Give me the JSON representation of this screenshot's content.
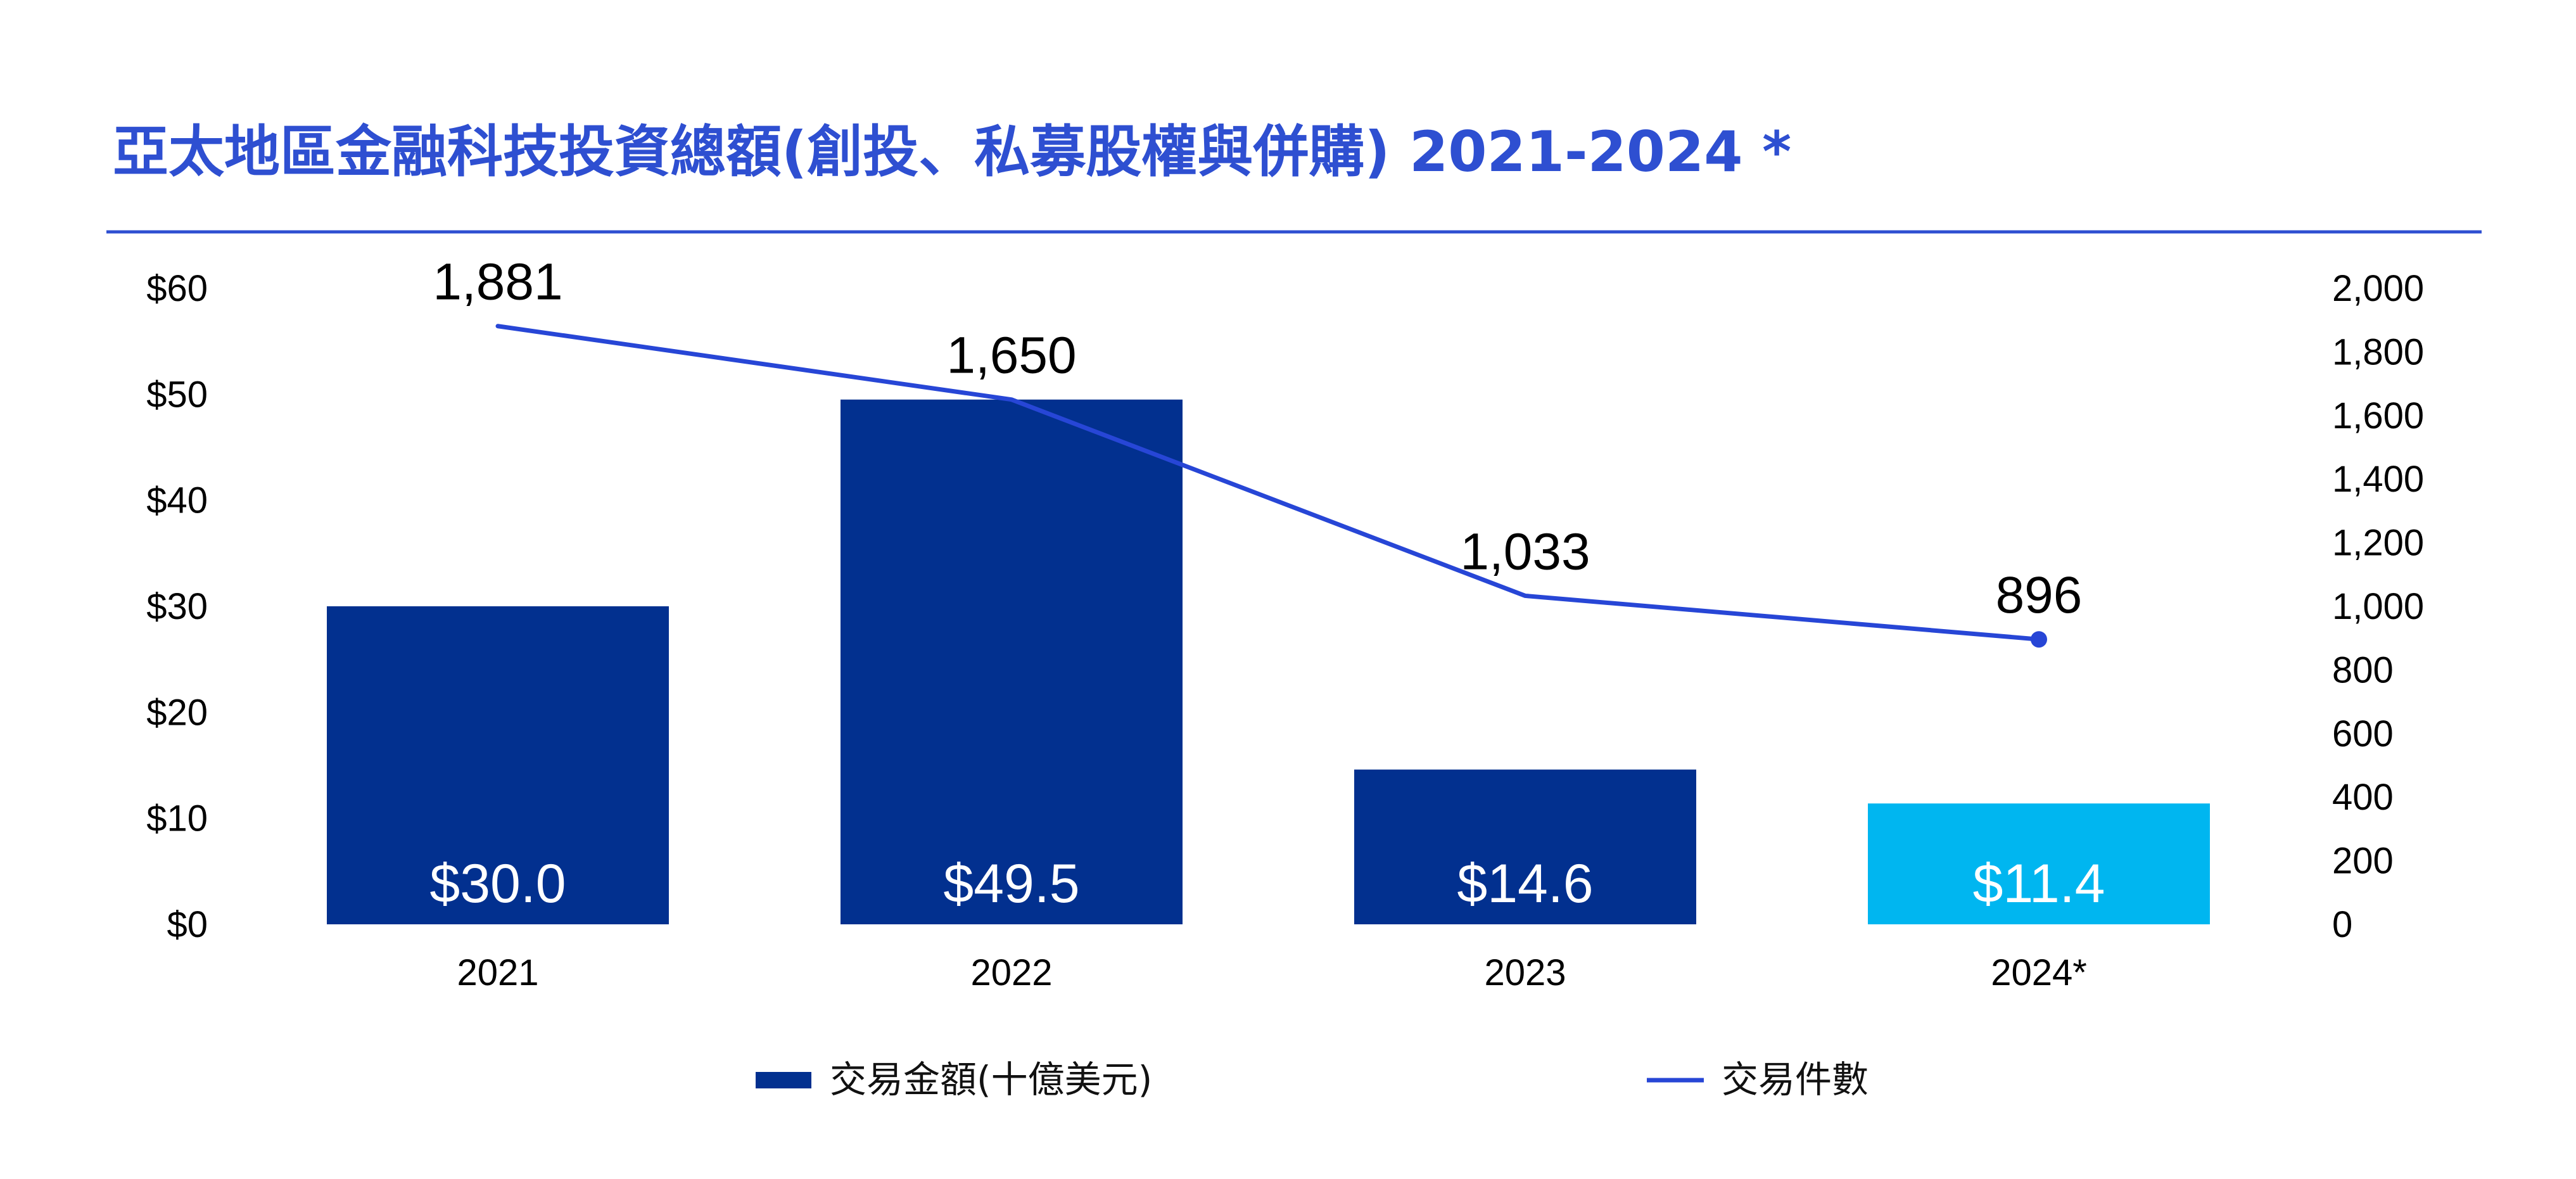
{
  "colors": {
    "title": "#2E4FD1",
    "rule": "#2E4FD1",
    "bar_primary": "#02308F",
    "bar_highlight": "#00B6F0",
    "line": "#2746D6",
    "bar_text": "#FFFFFF",
    "axis_text": "#000000"
  },
  "chart_data": {
    "type": "bar",
    "title": "亞太地區金融科技投資總額(創投、私募股權與併購) 2021-2024 *",
    "categories": [
      "2021",
      "2022",
      "2023",
      "2024*"
    ],
    "series": [
      {
        "name": "交易金額(十億美元)",
        "type": "bar",
        "axis": "left",
        "values": [
          30.0,
          49.5,
          14.6,
          11.4
        ],
        "labels": [
          "$30.0",
          "$49.5",
          "$14.6",
          "$11.4"
        ],
        "highlight_index": 3
      },
      {
        "name": "交易件數",
        "type": "line",
        "axis": "right",
        "values": [
          1881,
          1650,
          1033,
          896
        ],
        "labels": [
          "1,881",
          "1,650",
          "1,033",
          "896"
        ],
        "marker_index": 3
      }
    ],
    "y_left": {
      "ylim": [
        0,
        60
      ],
      "ticks": [
        0,
        10,
        20,
        30,
        40,
        50,
        60
      ],
      "tick_labels": [
        "$0",
        "$10",
        "$20",
        "$30",
        "$40",
        "$50",
        "$60"
      ]
    },
    "y_right": {
      "ylim": [
        0,
        2000
      ],
      "ticks": [
        0,
        200,
        400,
        600,
        800,
        1000,
        1200,
        1400,
        1600,
        1800,
        2000
      ],
      "tick_labels": [
        "0",
        "200",
        "400",
        "600",
        "800",
        "1,000",
        "1,200",
        "1,400",
        "1,600",
        "1,800",
        "2,000"
      ]
    },
    "xlabel": "",
    "ylabel": "",
    "grid": false,
    "legend_position": "bottom-center"
  }
}
